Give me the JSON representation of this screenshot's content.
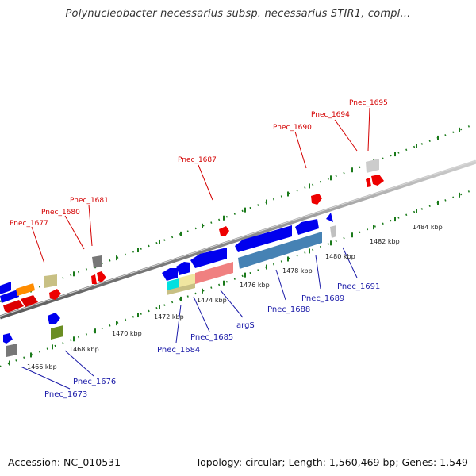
{
  "title": "Polynucleobacter necessarius subsp. necessarius STIR1, compl...",
  "footer": {
    "accession": "Accession: NC_010531",
    "topology": "Topology: circular; Length: 1,560,469 bp; Genes: 1,549"
  },
  "colors": {
    "forward_gene": "#0000ee",
    "reverse_gene": "#ee0000",
    "forward_label": "#1a1aa8",
    "reverse_label": "#d40000",
    "backbone": "#8a8a8a",
    "ticks": "#1a7a1a"
  },
  "scale_labels": [
    "1466 kbp",
    "1468 kbp",
    "1470 kbp",
    "1472 kbp",
    "1474 kbp",
    "1476 kbp",
    "1478 kbp",
    "1480 kbp",
    "1482 kbp",
    "1484 kbp"
  ],
  "reverse_labels": [
    "Pnec_1677",
    "Pnec_1680",
    "Pnec_1681",
    "Pnec_1687",
    "Pnec_1690",
    "Pnec_1694",
    "Pnec_1695"
  ],
  "forward_labels": [
    "Pnec_1673",
    "Pnec_1676",
    "Pnec_1684",
    "Pnec_1685",
    "argS",
    "Pnec_1688",
    "Pnec_1689",
    "Pnec_1691"
  ]
}
